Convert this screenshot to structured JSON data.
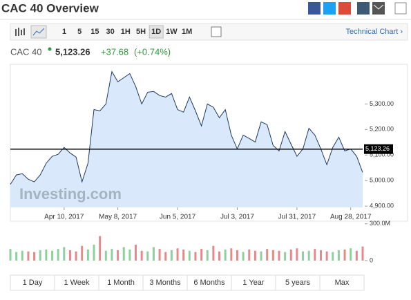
{
  "header": {
    "title": "CAC 40 Overview"
  },
  "toolbar": {
    "intervals": [
      "1",
      "5",
      "15",
      "30",
      "1H",
      "5H",
      "1D",
      "1W",
      "1M"
    ],
    "selected": "1D",
    "technical_link": "Technical Chart ›"
  },
  "quote": {
    "name": "CAC 40",
    "price": "5,123.26",
    "change": "+37.68",
    "change_pct": "(+0.74%)"
  },
  "watermark": "Investing.com",
  "chart_data": [
    {
      "type": "area",
      "color": "#1f3864",
      "fill": "#d9e9fb",
      "categories": [
        null,
        null,
        null,
        null,
        null,
        null,
        null,
        null,
        null,
        "Apr 10, 2017",
        null,
        null,
        null,
        null,
        null,
        null,
        null,
        null,
        "May 8, 2017",
        null,
        null,
        null,
        null,
        null,
        null,
        null,
        null,
        null,
        "Jun 5, 2017",
        null,
        null,
        null,
        null,
        null,
        null,
        null,
        null,
        null,
        "Jul 3, 2017",
        null,
        null,
        null,
        null,
        null,
        null,
        null,
        null,
        null,
        "Jul 31, 2017",
        null,
        null,
        null,
        null,
        null,
        null,
        null,
        null,
        "Aug 28, 2017",
        null,
        null
      ],
      "values": [
        4985,
        5022,
        5027,
        5005,
        4995,
        5022,
        5068,
        5095,
        5103,
        5130,
        5108,
        5092,
        4995,
        5068,
        5278,
        5273,
        5300,
        5427,
        5387,
        5403,
        5419,
        5368,
        5300,
        5346,
        5349,
        5333,
        5327,
        5341,
        5278,
        5268,
        5327,
        5273,
        5214,
        5300,
        5287,
        5246,
        5278,
        5178,
        5124,
        5178,
        5165,
        5151,
        5230,
        5219,
        5138,
        5116,
        5192,
        5143,
        5095,
        5124,
        5205,
        5178,
        5124,
        5062,
        5130,
        5170,
        5116,
        5124,
        5095,
        5032
      ],
      "ylim": [
        4895,
        5450
      ],
      "yticks": [
        {
          "value": 4900,
          "label": "4,900.00"
        },
        {
          "value": 5000,
          "label": "5,000.00"
        },
        {
          "value": 5100,
          "label": "5,100.00"
        },
        {
          "value": 5200,
          "label": "5,200.00"
        },
        {
          "value": 5300,
          "label": "5,300.00"
        }
      ],
      "current": {
        "value": 5123.26,
        "label": "5,123.26"
      }
    },
    {
      "type": "bar",
      "up_color": "#8fd19e",
      "down_color": "#e58a8a",
      "values": [
        95,
        70,
        80,
        75,
        70,
        85,
        90,
        80,
        95,
        110,
        85,
        75,
        120,
        90,
        130,
        200,
        80,
        95,
        85,
        110,
        90,
        130,
        80,
        75,
        110,
        95,
        70,
        85,
        100,
        90,
        80,
        70,
        95,
        85,
        120,
        75,
        90,
        100,
        85,
        70,
        90,
        80,
        75,
        95,
        85,
        80,
        70,
        90,
        100,
        75,
        80,
        95,
        85,
        75,
        70,
        85,
        90,
        100,
        80,
        115
      ],
      "ylim": [
        0,
        310
      ],
      "yticks": [
        {
          "value": 300,
          "label": "300.0M"
        },
        0
      ]
    }
  ],
  "ranges": [
    "1 Day",
    "1 Week",
    "1 Month",
    "3 Months",
    "6 Months",
    "1 Year",
    "5 years",
    "Max"
  ]
}
